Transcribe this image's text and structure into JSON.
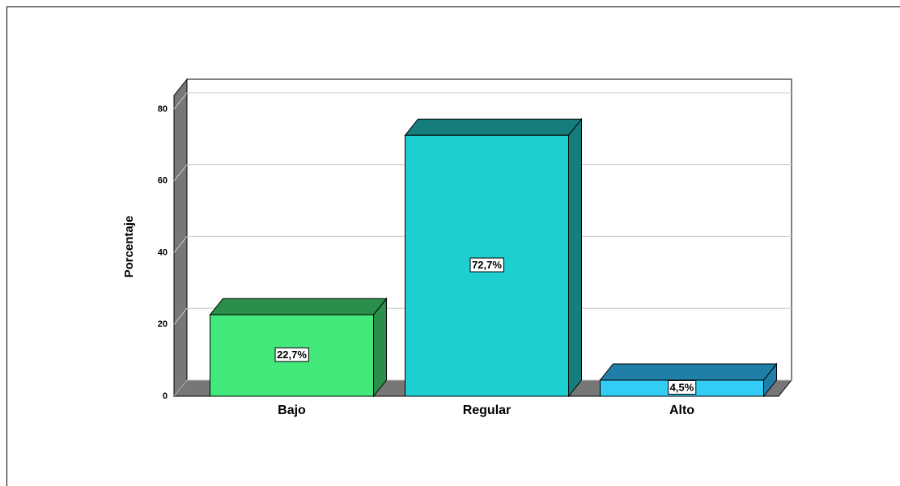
{
  "chart_data": {
    "type": "bar3d",
    "y_label": "Porcentaje",
    "categories": [
      "Bajo",
      "Regular",
      "Alto"
    ],
    "values": [
      22.7,
      72.7,
      4.5
    ],
    "value_labels": [
      "22,7%",
      "72,7%",
      "4,5%"
    ],
    "colors": [
      "#42e87a",
      "#1ecfcf",
      "#33ccf5"
    ],
    "side_colors": [
      "#2a8f4a",
      "#167d7d",
      "#1f7fa8"
    ],
    "ylim": [
      0,
      83.8
    ],
    "yticks": [
      0,
      20,
      40,
      60,
      80
    ],
    "grid": true
  }
}
